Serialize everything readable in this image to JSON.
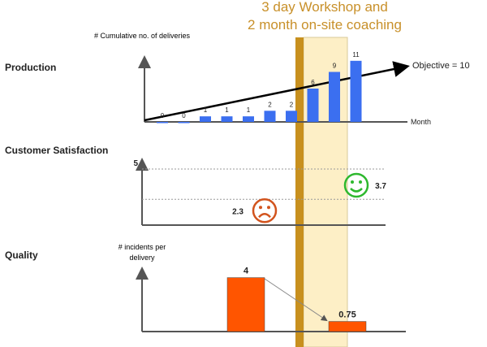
{
  "banner": {
    "lines": [
      "3 day Workshop and",
      "2 month on-site coaching"
    ]
  },
  "chart_data": [
    {
      "type": "bar",
      "title": "Production",
      "y_label": "# Cumulative no. of deliveries",
      "x_label": "Month",
      "values": [
        0,
        0,
        1,
        1,
        1,
        2,
        2,
        6,
        9,
        11
      ],
      "value_labels": [
        "0",
        "0",
        "1",
        "1",
        "1",
        "2",
        "2",
        "6",
        "9",
        "11"
      ],
      "color": "#3b6ff0",
      "ylim": [
        0,
        12
      ],
      "objective": {
        "label": "Objective = 10",
        "value": 10
      }
    },
    {
      "type": "scatter",
      "title": "Customer Satisfaction",
      "values": [
        2.3,
        3.7
      ],
      "colors": [
        "#d2541e",
        "#2eb82e"
      ],
      "ylim": [
        0,
        5
      ],
      "yticks": [
        5
      ],
      "grid": true
    },
    {
      "type": "bar",
      "title": "Quality",
      "y_label": "# incidents per delivery",
      "values": [
        4,
        0.75
      ],
      "color": "#ff5500",
      "ylim": [
        0,
        5
      ]
    }
  ]
}
